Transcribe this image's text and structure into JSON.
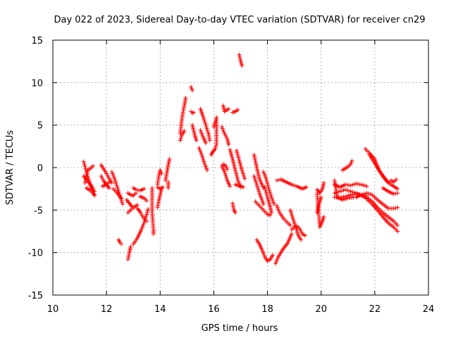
{
  "chart_data": {
    "type": "scatter",
    "title": "Day 022 of 2023, Sidereal Day-to-day VTEC variation (SDTVAR) for receiver cn29",
    "xlabel": "GPS time / hours",
    "ylabel": "SDTVAR / TECUs",
    "xlim": [
      10,
      24
    ],
    "ylim": [
      -15,
      15
    ],
    "xticks": [
      "10",
      "12",
      "14",
      "16",
      "18",
      "20",
      "22",
      "24"
    ],
    "yticks": [
      "15",
      "10",
      "5",
      "0",
      "-5",
      "-10",
      "-15"
    ],
    "grid": true,
    "marker": "+",
    "color": "#ff0000",
    "segments": [
      [
        [
          11.15,
          0.7
        ],
        [
          11.25,
          -0.5
        ],
        [
          11.35,
          -1.6
        ],
        [
          11.45,
          -2.5
        ],
        [
          11.55,
          -3.3
        ]
      ],
      [
        [
          11.15,
          -1.0
        ],
        [
          11.3,
          -1.6
        ],
        [
          11.45,
          -2.2
        ],
        [
          11.55,
          -2.8
        ]
      ],
      [
        [
          11.2,
          -1.8
        ],
        [
          11.3,
          -0.3
        ],
        [
          11.4,
          -0.1
        ],
        [
          11.5,
          0.2
        ]
      ],
      [
        [
          11.25,
          -2.4
        ],
        [
          11.4,
          -2.7
        ],
        [
          11.55,
          -3.2
        ]
      ],
      [
        [
          11.8,
          -1.0
        ],
        [
          11.9,
          -1.6
        ],
        [
          12.0,
          -2.0
        ],
        [
          12.1,
          -2.4
        ]
      ],
      [
        [
          11.8,
          0.3
        ],
        [
          11.9,
          -0.2
        ],
        [
          12.0,
          -0.7
        ],
        [
          12.1,
          -1.3
        ],
        [
          12.2,
          -1.8
        ]
      ],
      [
        [
          11.85,
          -2.2
        ],
        [
          12.0,
          -2.0
        ],
        [
          12.1,
          -1.7
        ]
      ],
      [
        [
          12.2,
          -0.5
        ],
        [
          12.3,
          -1.3
        ],
        [
          12.4,
          -2.3
        ],
        [
          12.5,
          -3.3
        ],
        [
          12.6,
          -4.3
        ]
      ],
      [
        [
          12.25,
          -2.5
        ],
        [
          12.4,
          -3.0
        ],
        [
          12.55,
          -3.6
        ]
      ],
      [
        [
          12.45,
          -8.5
        ],
        [
          12.5,
          -8.8
        ],
        [
          12.55,
          -9.0
        ]
      ],
      [
        [
          12.8,
          -10.8
        ],
        [
          12.85,
          -10.0
        ],
        [
          12.9,
          -9.3
        ]
      ],
      [
        [
          12.8,
          -3.0
        ],
        [
          12.9,
          -3.2
        ],
        [
          13.0,
          -3.3
        ],
        [
          13.1,
          -3.0
        ]
      ],
      [
        [
          12.8,
          -5.3
        ],
        [
          12.9,
          -5.0
        ],
        [
          13.0,
          -4.7
        ],
        [
          13.15,
          -4.4
        ]
      ],
      [
        [
          12.75,
          -3.8
        ],
        [
          12.85,
          -4.2
        ],
        [
          12.95,
          -4.6
        ]
      ],
      [
        [
          13.0,
          -9.0
        ],
        [
          13.15,
          -8.3
        ],
        [
          13.3,
          -7.3
        ],
        [
          13.4,
          -6.5
        ],
        [
          13.5,
          -5.5
        ],
        [
          13.55,
          -4.9
        ]
      ],
      [
        [
          13.0,
          -2.4
        ],
        [
          13.1,
          -2.6
        ],
        [
          13.25,
          -2.7
        ],
        [
          13.4,
          -2.5
        ]
      ],
      [
        [
          13.15,
          -4.8
        ],
        [
          13.25,
          -5.2
        ],
        [
          13.35,
          -5.8
        ],
        [
          13.5,
          -6.3
        ]
      ],
      [
        [
          13.25,
          -3.4
        ],
        [
          13.4,
          -3.6
        ],
        [
          13.5,
          -3.9
        ]
      ],
      [
        [
          13.7,
          -2.4
        ],
        [
          13.7,
          -5.3
        ],
        [
          13.75,
          -7.3
        ],
        [
          13.75,
          -7.8
        ]
      ],
      [
        [
          13.9,
          -2.0
        ],
        [
          13.95,
          -1.0
        ],
        [
          14.0,
          -0.3
        ],
        [
          14.05,
          -0.7
        ]
      ],
      [
        [
          13.9,
          -2.3
        ],
        [
          14.0,
          -2.5
        ],
        [
          14.1,
          -2.3
        ]
      ],
      [
        [
          13.9,
          -4.7
        ],
        [
          13.95,
          -3.9
        ],
        [
          14.0,
          -3.2
        ],
        [
          14.05,
          -2.5
        ]
      ],
      [
        [
          14.2,
          -1.5
        ],
        [
          14.25,
          -0.6
        ],
        [
          14.3,
          0.3
        ],
        [
          14.35,
          1.0
        ]
      ],
      [
        [
          14.3,
          -2.4
        ],
        [
          14.3,
          -1.7
        ]
      ],
      [
        [
          14.75,
          4.0
        ],
        [
          14.8,
          5.5
        ],
        [
          14.85,
          6.5
        ],
        [
          14.9,
          7.3
        ],
        [
          14.95,
          8.2
        ]
      ],
      [
        [
          14.75,
          3.2
        ],
        [
          14.8,
          3.8
        ],
        [
          14.9,
          4.3
        ]
      ],
      [
        [
          15.15,
          9.5
        ],
        [
          15.2,
          9.1
        ]
      ],
      [
        [
          15.15,
          6.6
        ],
        [
          15.2,
          6.4
        ],
        [
          15.25,
          6.5
        ]
      ],
      [
        [
          15.2,
          5.0
        ],
        [
          15.3,
          3.7
        ],
        [
          15.35,
          3.2
        ]
      ],
      [
        [
          15.5,
          6.9
        ],
        [
          15.6,
          6.0
        ],
        [
          15.7,
          5.0
        ],
        [
          15.8,
          4.0
        ],
        [
          15.85,
          3.2
        ]
      ],
      [
        [
          15.45,
          2.3
        ],
        [
          15.55,
          1.5
        ],
        [
          15.65,
          0.5
        ],
        [
          15.75,
          -0.3
        ]
      ],
      [
        [
          15.5,
          4.4
        ],
        [
          15.6,
          3.6
        ],
        [
          15.7,
          2.9
        ]
      ],
      [
        [
          16.0,
          4.8
        ],
        [
          16.05,
          5.3
        ],
        [
          16.1,
          5.9
        ],
        [
          16.1,
          2.8
        ],
        [
          16.05,
          2.2
        ],
        [
          15.95,
          1.8
        ],
        [
          15.9,
          1.5
        ]
      ],
      [
        [
          16.35,
          7.3
        ],
        [
          16.4,
          6.6
        ],
        [
          16.45,
          6.7
        ],
        [
          16.55,
          6.9
        ]
      ],
      [
        [
          16.3,
          4.8
        ],
        [
          16.4,
          4.0
        ],
        [
          16.5,
          3.4
        ],
        [
          16.55,
          2.7
        ]
      ],
      [
        [
          16.3,
          0.2
        ],
        [
          16.4,
          -0.5
        ],
        [
          16.5,
          -1.5
        ],
        [
          16.6,
          -2.2
        ]
      ],
      [
        [
          16.35,
          0.4
        ],
        [
          16.45,
          0.2
        ],
        [
          16.5,
          -0.2
        ]
      ],
      [
        [
          16.7,
          -4.2
        ],
        [
          16.75,
          -5.0
        ],
        [
          16.8,
          -5.3
        ]
      ],
      [
        [
          16.7,
          6.5
        ],
        [
          16.8,
          6.6
        ],
        [
          16.9,
          6.8
        ]
      ],
      [
        [
          16.6,
          2.1
        ],
        [
          16.7,
          1.0
        ],
        [
          16.8,
          -0.3
        ],
        [
          16.9,
          -1.5
        ],
        [
          17.0,
          -2.3
        ]
      ],
      [
        [
          16.85,
          2.0
        ],
        [
          16.95,
          0.8
        ],
        [
          17.05,
          -0.3
        ],
        [
          17.15,
          -1.3
        ]
      ],
      [
        [
          16.8,
          -2.0
        ],
        [
          16.9,
          -2.1
        ],
        [
          17.0,
          -2.2
        ],
        [
          17.1,
          -2.3
        ]
      ],
      [
        [
          16.95,
          13.3
        ],
        [
          17.0,
          12.5
        ],
        [
          17.05,
          12.0
        ]
      ],
      [
        [
          17.5,
          1.5
        ],
        [
          17.6,
          0.0
        ],
        [
          17.7,
          -1.3
        ],
        [
          17.85,
          -2.4
        ]
      ],
      [
        [
          17.5,
          -1.0
        ],
        [
          17.6,
          -2.0
        ],
        [
          17.7,
          -3.0
        ],
        [
          17.85,
          -4.3
        ]
      ],
      [
        [
          17.55,
          -4.0
        ],
        [
          17.7,
          -4.5
        ],
        [
          17.85,
          -5.0
        ],
        [
          18.0,
          -5.5
        ],
        [
          18.1,
          -5.6
        ]
      ],
      [
        [
          17.85,
          -0.5
        ],
        [
          17.95,
          -1.3
        ],
        [
          18.05,
          -2.5
        ],
        [
          18.15,
          -3.5
        ],
        [
          18.25,
          -4.3
        ]
      ],
      [
        [
          17.9,
          -2.3
        ],
        [
          18.0,
          -3.5
        ],
        [
          18.1,
          -4.6
        ],
        [
          18.15,
          -5.3
        ]
      ],
      [
        [
          17.6,
          -8.5
        ],
        [
          17.7,
          -9.0
        ],
        [
          17.8,
          -9.7
        ],
        [
          17.9,
          -10.5
        ],
        [
          18.0,
          -11.0
        ],
        [
          18.1,
          -10.8
        ],
        [
          18.2,
          -10.3
        ]
      ],
      [
        [
          18.3,
          -11.3
        ],
        [
          18.4,
          -10.5
        ],
        [
          18.5,
          -10.0
        ],
        [
          18.6,
          -9.5
        ],
        [
          18.75,
          -8.9
        ],
        [
          18.9,
          -7.8
        ]
      ],
      [
        [
          18.35,
          -4.5
        ],
        [
          18.45,
          -5.3
        ],
        [
          18.6,
          -6.0
        ],
        [
          18.75,
          -6.5
        ],
        [
          18.85,
          -6.8
        ]
      ],
      [
        [
          18.35,
          -1.5
        ],
        [
          18.5,
          -1.4
        ],
        [
          18.7,
          -1.7
        ],
        [
          18.9,
          -2.0
        ],
        [
          19.1,
          -2.2
        ],
        [
          19.3,
          -2.5
        ],
        [
          19.45,
          -2.3
        ]
      ],
      [
        [
          18.85,
          -5.0
        ],
        [
          18.95,
          -6.0
        ],
        [
          19.05,
          -7.0
        ],
        [
          19.15,
          -8.0
        ],
        [
          19.25,
          -8.5
        ]
      ],
      [
        [
          18.9,
          -7.3
        ],
        [
          19.0,
          -7.0
        ],
        [
          19.1,
          -6.9
        ],
        [
          19.2,
          -7.2
        ],
        [
          19.3,
          -7.8
        ],
        [
          19.4,
          -8.0
        ]
      ],
      [
        [
          19.85,
          -3.0
        ],
        [
          19.9,
          -5.0
        ],
        [
          19.95,
          -7.0
        ],
        [
          20.05,
          -6.3
        ],
        [
          20.1,
          -5.8
        ]
      ],
      [
        [
          19.85,
          -2.6
        ],
        [
          19.95,
          -3.0
        ],
        [
          20.05,
          -2.5
        ],
        [
          20.1,
          -1.8
        ]
      ],
      [
        [
          19.85,
          -5.3
        ],
        [
          19.9,
          -4.5
        ],
        [
          19.95,
          -4.0
        ],
        [
          20.0,
          -3.5
        ]
      ],
      [
        [
          20.5,
          -2.0
        ],
        [
          20.7,
          -2.3
        ],
        [
          20.9,
          -2.0
        ],
        [
          21.1,
          -2.1
        ],
        [
          21.3,
          -1.9
        ],
        [
          21.5,
          -2.0
        ],
        [
          21.7,
          -2.2
        ]
      ],
      [
        [
          20.5,
          -3.0
        ],
        [
          20.7,
          -2.8
        ],
        [
          20.9,
          -2.6
        ],
        [
          21.1,
          -2.8
        ],
        [
          21.3,
          -3.0
        ],
        [
          21.5,
          -3.3
        ],
        [
          21.7,
          -3.6
        ]
      ],
      [
        [
          20.5,
          -3.5
        ],
        [
          20.7,
          -3.5
        ],
        [
          20.9,
          -3.4
        ],
        [
          21.1,
          -3.2
        ],
        [
          21.3,
          -3.1
        ],
        [
          21.5,
          -3.2
        ],
        [
          21.7,
          -3.3
        ]
      ],
      [
        [
          20.5,
          -1.5
        ],
        [
          20.6,
          -3.5
        ],
        [
          20.8,
          -3.8
        ],
        [
          21.0,
          -3.6
        ],
        [
          21.2,
          -3.5
        ]
      ],
      [
        [
          20.8,
          -0.3
        ],
        [
          20.9,
          -0.1
        ],
        [
          21.0,
          0.1
        ],
        [
          21.1,
          0.4
        ],
        [
          21.15,
          0.8
        ]
      ],
      [
        [
          21.3,
          -3.5
        ],
        [
          21.5,
          -3.2
        ],
        [
          21.7,
          -3.0
        ],
        [
          21.9,
          -3.2
        ],
        [
          22.1,
          -3.8
        ],
        [
          22.3,
          -4.3
        ],
        [
          22.5,
          -4.8
        ],
        [
          22.7,
          -4.8
        ],
        [
          22.85,
          -4.7
        ]
      ],
      [
        [
          21.7,
          -3.5
        ],
        [
          21.9,
          -4.0
        ],
        [
          22.1,
          -4.7
        ],
        [
          22.3,
          -5.3
        ],
        [
          22.5,
          -5.8
        ],
        [
          22.7,
          -6.3
        ],
        [
          22.85,
          -6.8
        ]
      ],
      [
        [
          21.7,
          -3.7
        ],
        [
          21.9,
          -4.3
        ],
        [
          22.1,
          -5.0
        ],
        [
          22.3,
          -5.8
        ],
        [
          22.5,
          -6.5
        ],
        [
          22.7,
          -7.0
        ],
        [
          22.85,
          -7.5
        ]
      ],
      [
        [
          21.65,
          2.2
        ],
        [
          21.8,
          1.7
        ],
        [
          22.0,
          1.0
        ],
        [
          22.15,
          -0.3
        ],
        [
          22.3,
          -1.0
        ],
        [
          22.5,
          -1.8
        ]
      ],
      [
        [
          21.8,
          1.5
        ],
        [
          22.0,
          0.5
        ],
        [
          22.2,
          -0.5
        ],
        [
          22.4,
          -1.4
        ],
        [
          22.6,
          -2.0
        ],
        [
          22.85,
          -2.5
        ]
      ],
      [
        [
          22.3,
          -2.4
        ],
        [
          22.5,
          -2.8
        ],
        [
          22.7,
          -3.1
        ],
        [
          22.85,
          -3.0
        ]
      ],
      [
        [
          22.6,
          -1.5
        ],
        [
          22.7,
          -1.7
        ],
        [
          22.8,
          -1.4
        ]
      ]
    ]
  }
}
